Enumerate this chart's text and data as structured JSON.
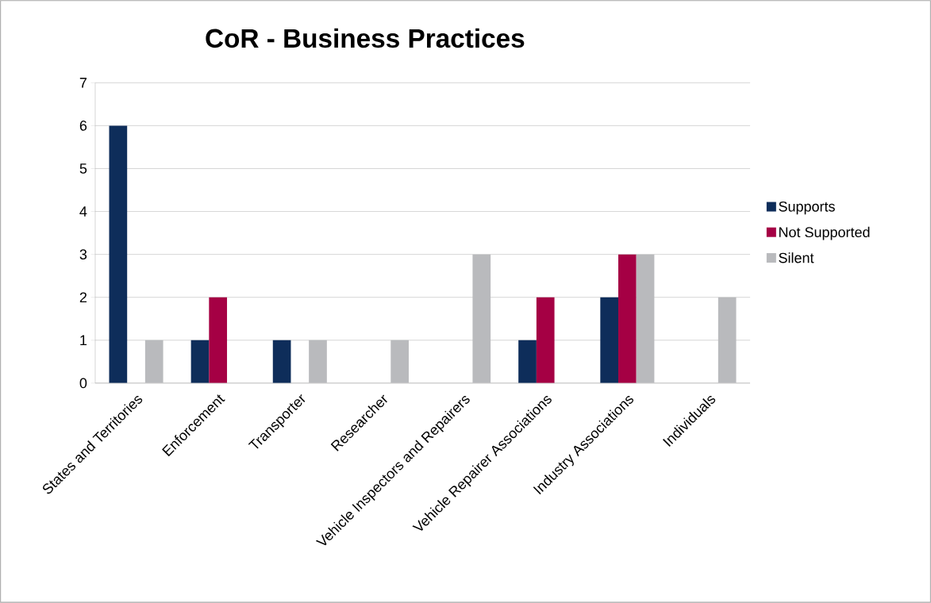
{
  "chart_data": {
    "type": "bar",
    "title": "CoR - Business Practices",
    "categories": [
      "States and Territories",
      "Enforcement",
      "Transporter",
      "Researcher",
      "Vehicle Inspectors and Repairers",
      "Vehicle Repairer Associations",
      "Industry Associations",
      "Individuals"
    ],
    "series": [
      {
        "name": "Supports",
        "color": "#0e2d5a",
        "values": [
          6,
          1,
          1,
          0,
          0,
          1,
          2,
          0
        ]
      },
      {
        "name": "Not Supported",
        "color": "#a50044",
        "values": [
          0,
          2,
          0,
          0,
          0,
          2,
          3,
          0
        ]
      },
      {
        "name": "Silent",
        "color": "#b9babd",
        "values": [
          1,
          0,
          1,
          1,
          3,
          0,
          3,
          2
        ]
      }
    ],
    "ylim": [
      0,
      7
    ],
    "yticks": [
      0,
      1,
      2,
      3,
      4,
      5,
      6,
      7
    ],
    "grid": "y",
    "legend": "right"
  }
}
